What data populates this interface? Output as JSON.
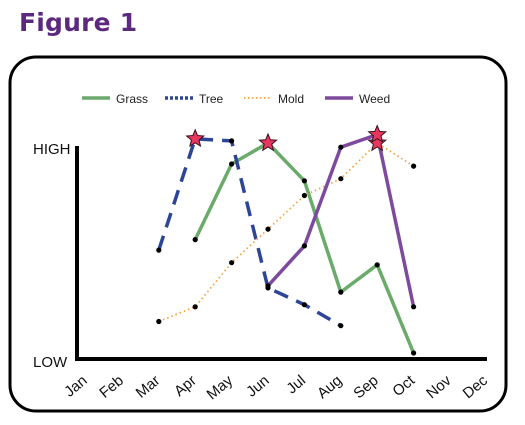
{
  "title": "Figure 1",
  "chart_data": {
    "type": "line",
    "categories": [
      "Jan",
      "Feb",
      "Mar",
      "Apr",
      "May",
      "Jun",
      "Jul",
      "Aug",
      "Sep",
      "Oct",
      "Nov",
      "Dec"
    ],
    "y_axis_labels": {
      "high": "HIGH",
      "low": "LOW"
    },
    "ylim": [
      0,
      100
    ],
    "legend": {
      "placement": "top"
    },
    "grid": false,
    "series": [
      {
        "name": "Grass",
        "color": "#6aaa6a",
        "dash": "solid",
        "x": [
          "Apr",
          "May",
          "Jun",
          "Jul",
          "Aug",
          "Sep",
          "Oct"
        ],
        "values": [
          54,
          90,
          100,
          82,
          29,
          42,
          0
        ],
        "peak_index": 2
      },
      {
        "name": "Tree",
        "color": "#2e4597",
        "dash": "dashed",
        "x": [
          "Mar",
          "Apr",
          "May",
          "Jun",
          "Jul",
          "Aug"
        ],
        "values": [
          49,
          102,
          101,
          31,
          23,
          13
        ],
        "peak_index": 1
      },
      {
        "name": "Mold",
        "color": "#f2a445",
        "dash": "dotted",
        "x": [
          "Mar",
          "Apr",
          "May",
          "Jun",
          "Jul",
          "Aug",
          "Sep",
          "Oct"
        ],
        "values": [
          15,
          22,
          43,
          59,
          75,
          83,
          100,
          89
        ],
        "peak_index": 6
      },
      {
        "name": "Weed",
        "color": "#7d4a9e",
        "dash": "solid",
        "x": [
          "Jun",
          "Jul",
          "Aug",
          "Sep",
          "Oct"
        ],
        "values": [
          32,
          51,
          98,
          104,
          22
        ],
        "peak_index": 3
      }
    ],
    "peak_marker": {
      "shape": "star",
      "color": "#e8375f"
    }
  }
}
